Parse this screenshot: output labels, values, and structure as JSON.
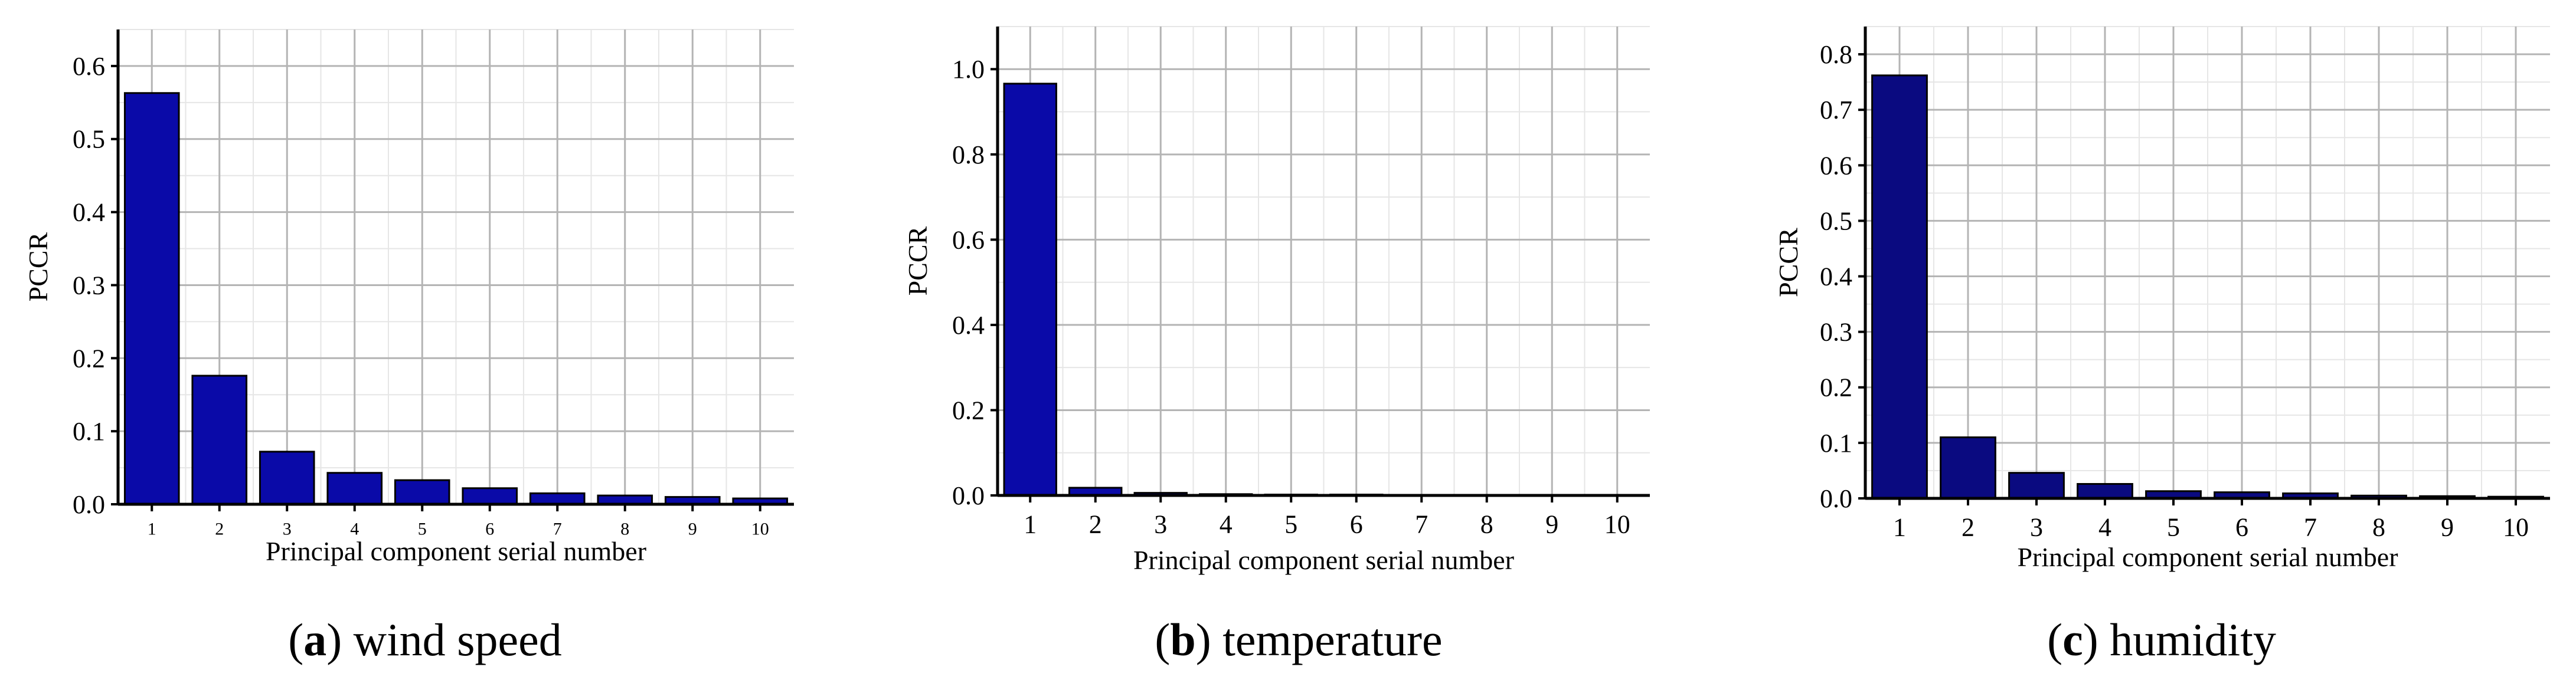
{
  "chart_data": [
    {
      "type": "bar",
      "caption_letter": "a",
      "caption_text": "wind speed",
      "xlabel": "Principal component serial number",
      "ylabel": "PCCR",
      "categories": [
        "1",
        "2",
        "3",
        "4",
        "5",
        "6",
        "7",
        "8",
        "9",
        "10"
      ],
      "values": [
        0.563,
        0.176,
        0.072,
        0.043,
        0.033,
        0.022,
        0.015,
        0.012,
        0.01,
        0.008
      ],
      "ylim": [
        0,
        0.65
      ],
      "yticks": [
        0.0,
        0.1,
        0.2,
        0.3,
        0.4,
        0.5,
        0.6
      ],
      "ytick_labels": [
        "0.0",
        "0.1",
        "0.2",
        "0.3",
        "0.4",
        "0.5",
        "0.6"
      ],
      "bar_color": "#0a0aa8",
      "grid": true
    },
    {
      "type": "bar",
      "caption_letter": "b",
      "caption_text": "temperature",
      "xlabel": "Principal component serial number",
      "ylabel": "PCCR",
      "categories": [
        "1",
        "2",
        "3",
        "4",
        "5",
        "6",
        "7",
        "8",
        "9",
        "10"
      ],
      "values": [
        0.966,
        0.018,
        0.006,
        0.003,
        0.002,
        0.002,
        0.001,
        0.001,
        0.001,
        0.001
      ],
      "ylim": [
        0,
        1.1
      ],
      "yticks": [
        0.0,
        0.2,
        0.4,
        0.6,
        0.8,
        1.0
      ],
      "ytick_labels": [
        "0.0",
        "0.2",
        "0.4",
        "0.6",
        "0.8",
        "1.0"
      ],
      "bar_color": "#0a0aa8",
      "grid": true
    },
    {
      "type": "bar",
      "caption_letter": "c",
      "caption_text": "humidity",
      "xlabel": "Principal component serial number",
      "ylabel": "PCCR",
      "categories": [
        "1",
        "2",
        "3",
        "4",
        "5",
        "6",
        "7",
        "8",
        "9",
        "10"
      ],
      "values": [
        0.762,
        0.11,
        0.046,
        0.026,
        0.013,
        0.011,
        0.009,
        0.005,
        0.004,
        0.003
      ],
      "ylim": [
        0,
        0.85
      ],
      "yticks": [
        0.0,
        0.1,
        0.2,
        0.3,
        0.4,
        0.5,
        0.6,
        0.7,
        0.8
      ],
      "ytick_labels": [
        "0.0",
        "0.1",
        "0.2",
        "0.3",
        "0.4",
        "0.5",
        "0.6",
        "0.7",
        "0.8"
      ],
      "bar_color": "#0a0a80",
      "grid": true
    }
  ]
}
